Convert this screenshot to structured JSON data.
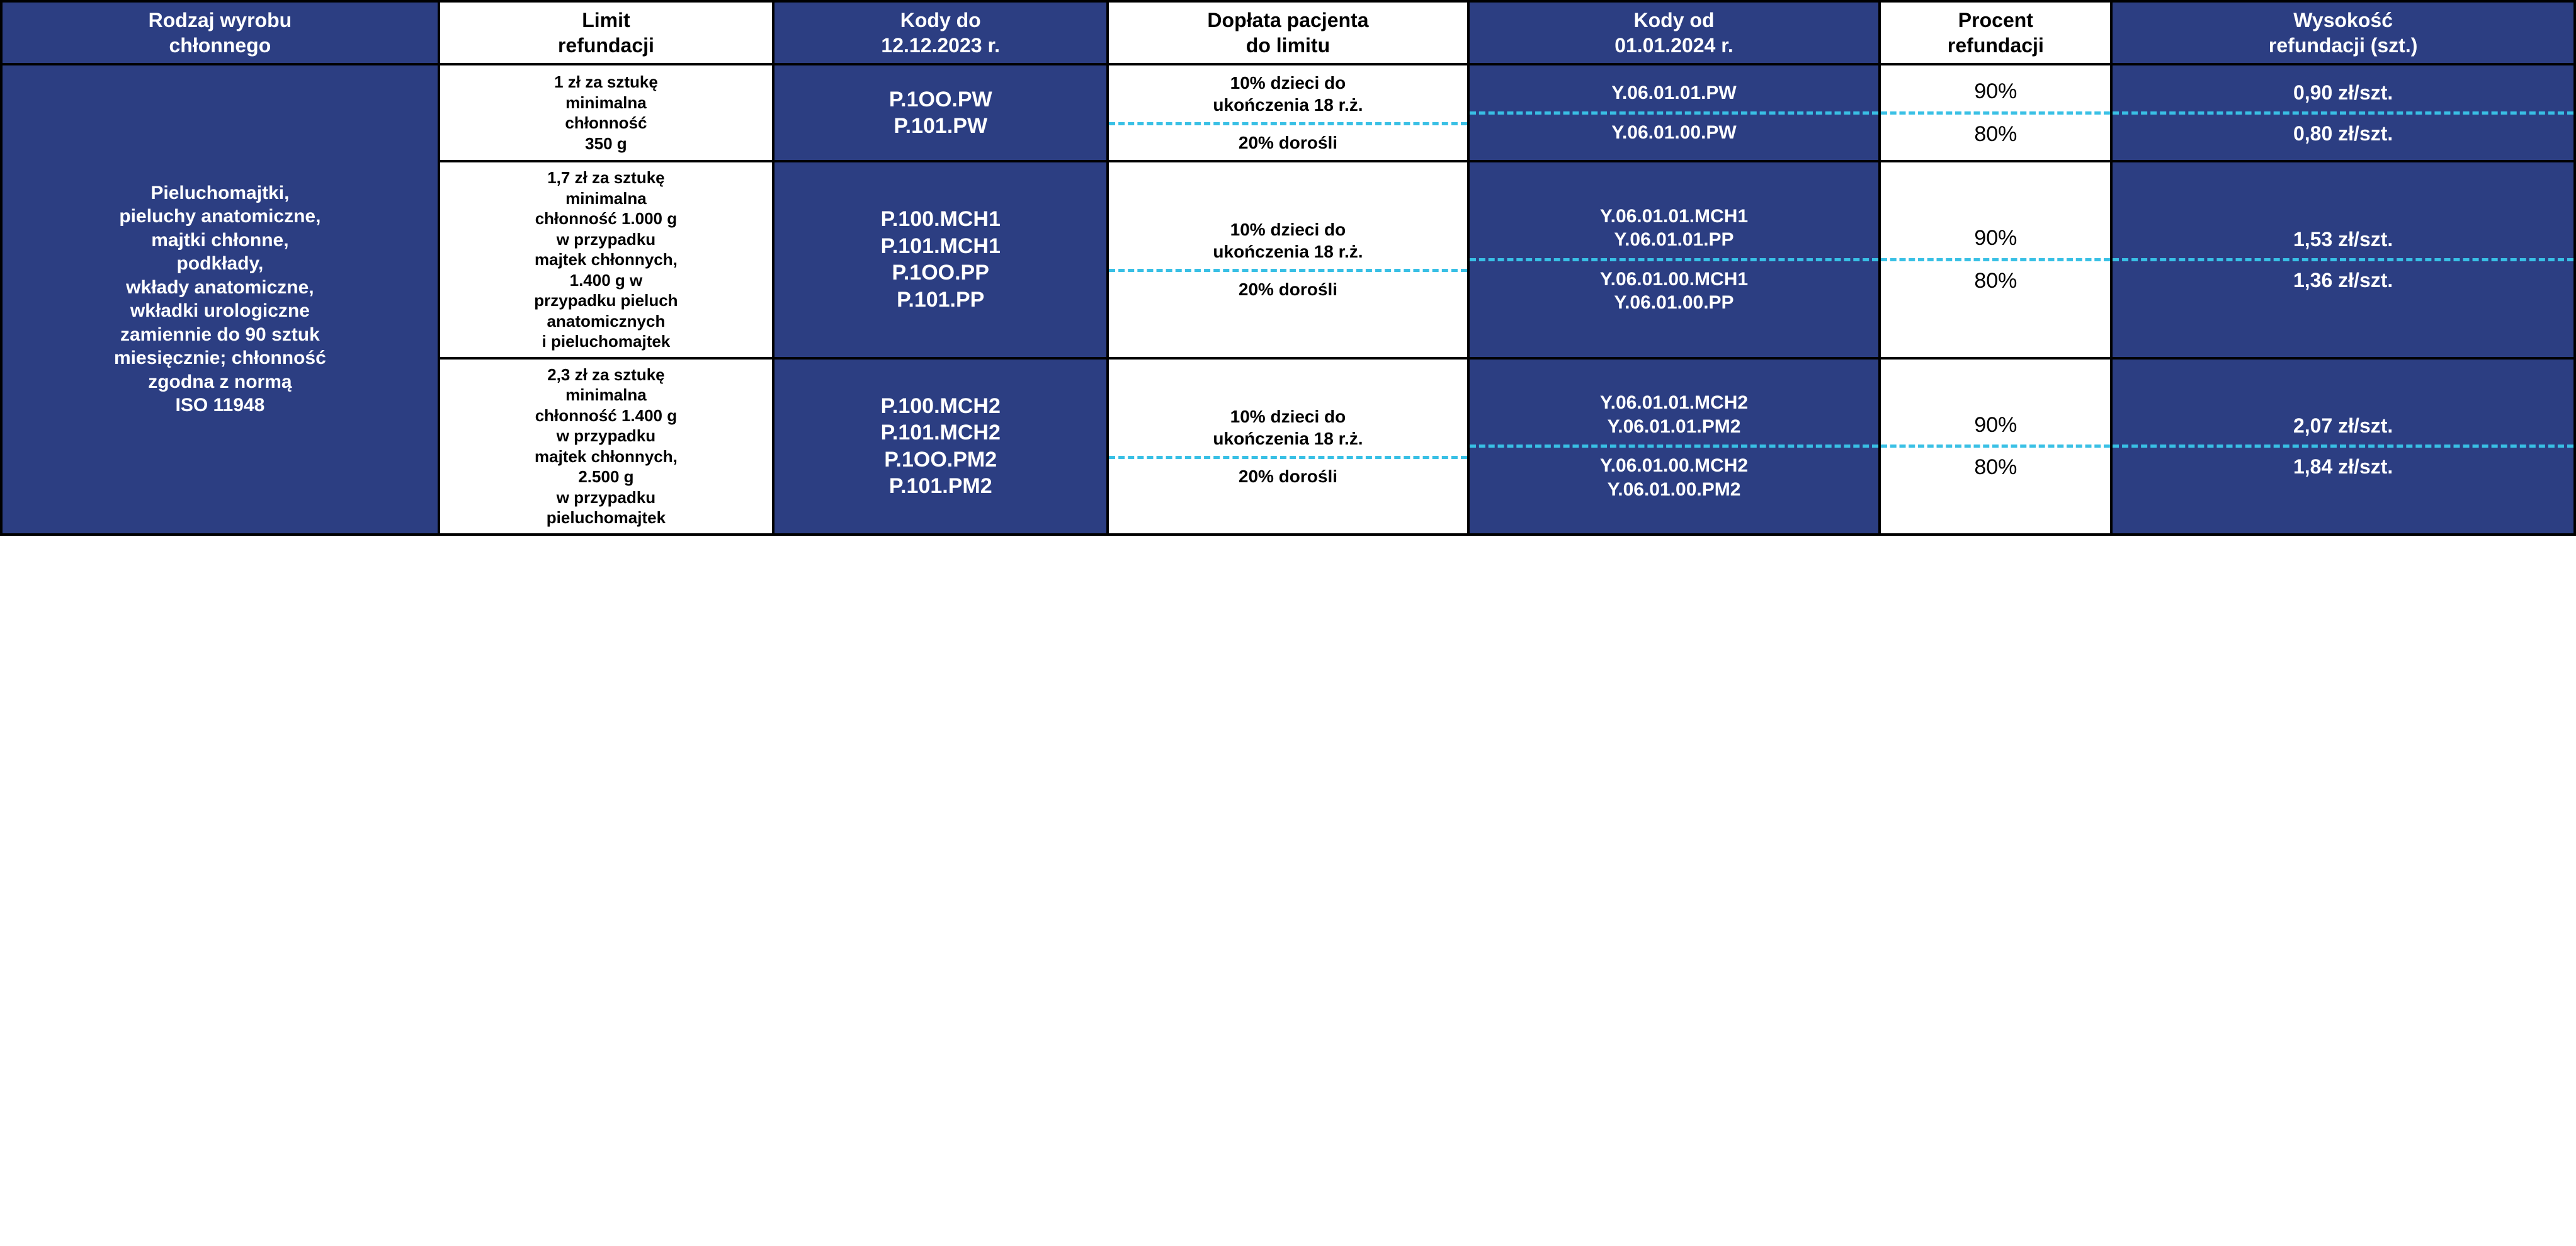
{
  "colors": {
    "blue": "#2c3e82",
    "dash": "#39c0e5",
    "border": "#000000",
    "white": "#ffffff"
  },
  "headers": {
    "c1": "Rodzaj wyrobu\nchłonnego",
    "c2": "Limit\nrefundacji",
    "c3": "Kody do\n12.12.2023 r.",
    "c4": "Dopłata pacjenta\ndo limitu",
    "c5": "Kody od\n01.01.2024 r.",
    "c6": "Procent\nrefundacji",
    "c7": "Wysokość\nrefundacji (szt.)"
  },
  "rowlabel": "Pieluchomajtki,\npieluchy anatomiczne,\nmajtki chłonne,\npodkłady,\nwkłady anatomiczne,\nwkładki urologiczne\nzamiennie do 90 sztuk\nmiesięcznie; chłonność\nzgodna z normą\nISO 11948",
  "groups": [
    {
      "limit": "1 zł za sztukę\nminimalna\nchłonność\n350 g",
      "codes_old": "P.1OO.PW\nP.101.PW",
      "doplata_top": "10% dzieci do\nukończenia 18 r.ż.",
      "doplata_bot": "20% dorośli",
      "codes_new_top": "Y.06.01.01.PW",
      "codes_new_bot": "Y.06.01.00.PW",
      "procent_top": "90%",
      "procent_bot": "80%",
      "refund_top": "0,90 zł/szt.",
      "refund_bot": "0,80 zł/szt."
    },
    {
      "limit": "1,7 zł za sztukę\nminimalna\nchłonność 1.000 g\nw przypadku\nmajtek chłonnych,\n1.400 g w\nprzypadku pieluch\nanatomicznych\ni pieluchomajtek",
      "codes_old": "P.100.MCH1\nP.101.MCH1\nP.1OO.PP\nP.101.PP",
      "doplata_top": "10% dzieci do\nukończenia 18 r.ż.",
      "doplata_bot": "20% dorośli",
      "codes_new_top": "Y.06.01.01.MCH1\nY.06.01.01.PP",
      "codes_new_bot": "Y.06.01.00.MCH1\nY.06.01.00.PP",
      "procent_top": "90%",
      "procent_bot": "80%",
      "refund_top": "1,53 zł/szt.",
      "refund_bot": "1,36 zł/szt."
    },
    {
      "limit": "2,3 zł za sztukę\nminimalna\nchłonność 1.400 g\nw przypadku\nmajtek chłonnych,\n2.500 g\nw przypadku\npieluchomajtek",
      "codes_old": "P.100.MCH2\nP.101.MCH2\nP.1OO.PM2\nP.101.PM2",
      "doplata_top": "10% dzieci do\nukończenia 18 r.ż.",
      "doplata_bot": "20% dorośli",
      "codes_new_top": "Y.06.01.01.MCH2\nY.06.01.01.PM2",
      "codes_new_bot": "Y.06.01.00.MCH2\nY.06.01.00.PM2",
      "procent_top": "90%",
      "procent_bot": "80%",
      "refund_top": "2,07 zł/szt.",
      "refund_bot": "1,84 zł/szt."
    }
  ]
}
